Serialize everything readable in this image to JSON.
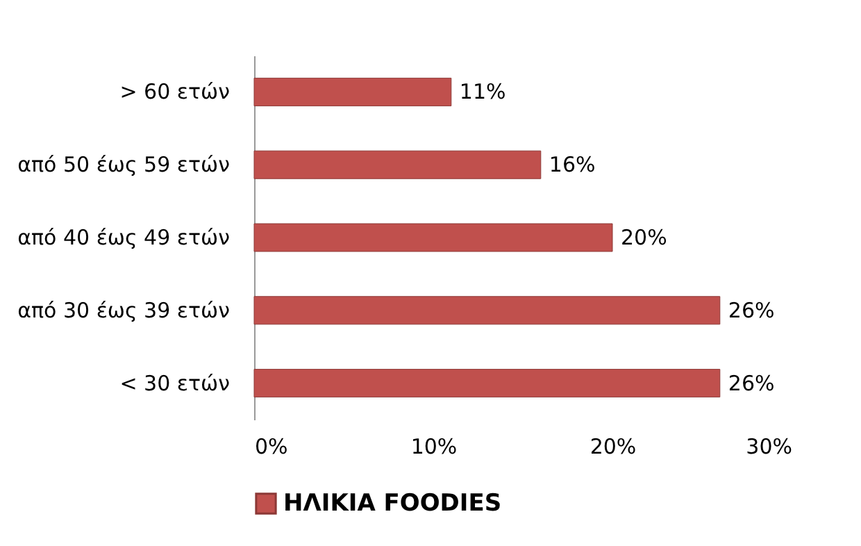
{
  "chart_data": {
    "type": "bar",
    "orientation": "horizontal",
    "categories": [
      "> 60 ετών",
      "από 50 έως 59 ετών",
      "από 40 έως 49 ετών",
      "από 30 έως 39 ετών",
      "< 30 ετών"
    ],
    "series": [
      {
        "name": "ΗΛΙΚΙΑ FOODIES",
        "color": "#c0504d",
        "values": [
          11,
          16,
          20,
          26,
          26
        ],
        "value_labels": [
          "11%",
          "16%",
          "20%",
          "26%",
          "26%"
        ]
      }
    ],
    "xlim": [
      0,
      30
    ],
    "xticks": [
      {
        "value": 0,
        "label": "0%"
      },
      {
        "value": 10,
        "label": "10%"
      },
      {
        "value": 20,
        "label": "20%"
      },
      {
        "value": 30,
        "label": "30%"
      }
    ],
    "grid": false,
    "legend": "bottom"
  }
}
